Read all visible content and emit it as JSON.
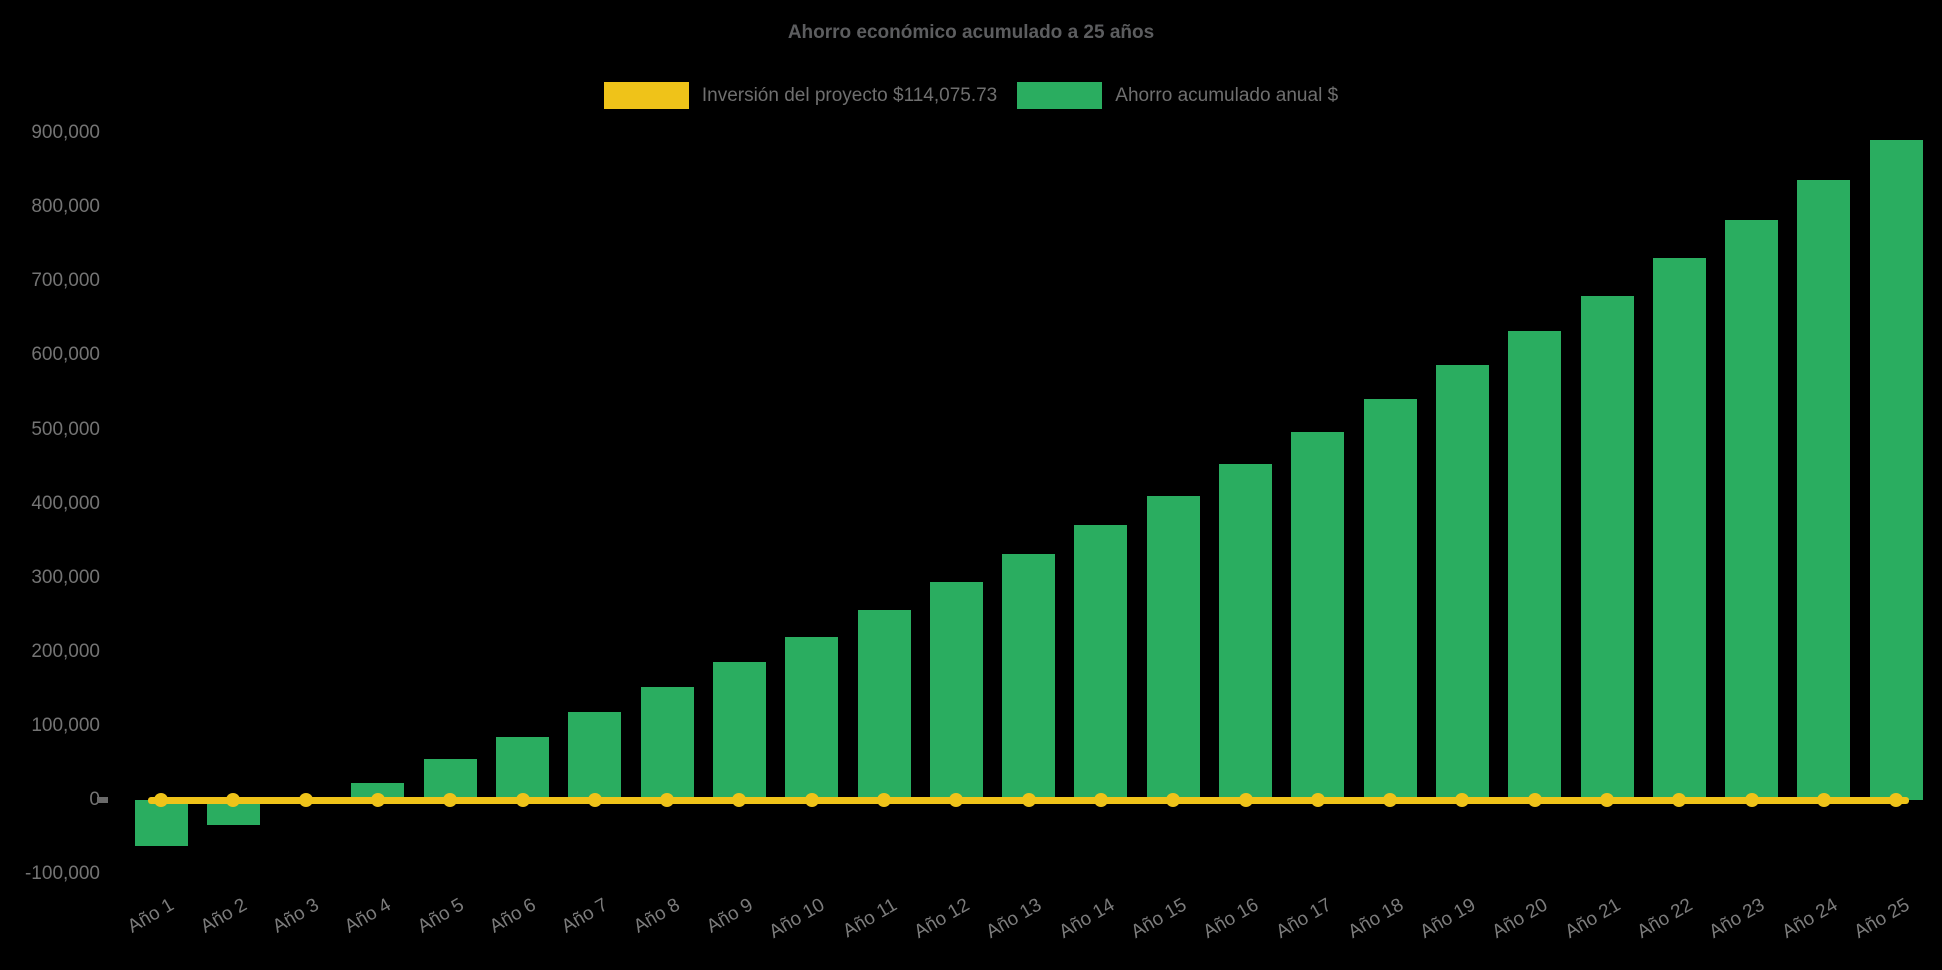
{
  "page": {
    "background": "#000000"
  },
  "chart_data": {
    "type": "bar",
    "title": "Ahorro económico acumulado a 25 años",
    "xlabel": "",
    "ylabel": "",
    "categories": [
      "Año 1",
      "Año 2",
      "Año 3",
      "Año 4",
      "Año 5",
      "Año 6",
      "Año 7",
      "Año 8",
      "Año 9",
      "Año 10",
      "Año 11",
      "Año 12",
      "Año 13",
      "Año 14",
      "Año 15",
      "Año 16",
      "Año 17",
      "Año 18",
      "Año 19",
      "Año 20",
      "Año 21",
      "Año 22",
      "Año 23",
      "Año 24",
      "Año 25"
    ],
    "series": [
      {
        "name": "Inversión del proyecto $114,075.73",
        "type": "line",
        "color": "#efc319",
        "markers": true,
        "note": "constant horizontal line rendered at the 0 level",
        "values": [
          0,
          0,
          0,
          0,
          0,
          0,
          0,
          0,
          0,
          0,
          0,
          0,
          0,
          0,
          0,
          0,
          0,
          0,
          0,
          0,
          0,
          0,
          0,
          0,
          0
        ]
      },
      {
        "name": "Ahorro acumulado anual $",
        "type": "bar",
        "color": "#2aad60",
        "values": [
          -62000,
          -33500,
          -3500,
          23500,
          55000,
          85500,
          118500,
          152500,
          186000,
          220000,
          256500,
          294000,
          332000,
          371000,
          410000,
          453500,
          496500,
          541000,
          587000,
          633000,
          680000,
          731500,
          783000,
          836500,
          891000
        ]
      }
    ],
    "ylim": [
      -100000,
      900000
    ],
    "y_ticks": [
      -100000,
      0,
      100000,
      200000,
      300000,
      400000,
      500000,
      600000,
      700000,
      800000,
      900000
    ],
    "grid": false,
    "legend_position": "top",
    "title_color": "#5c5d5f",
    "axis_text_color": "#777777"
  }
}
